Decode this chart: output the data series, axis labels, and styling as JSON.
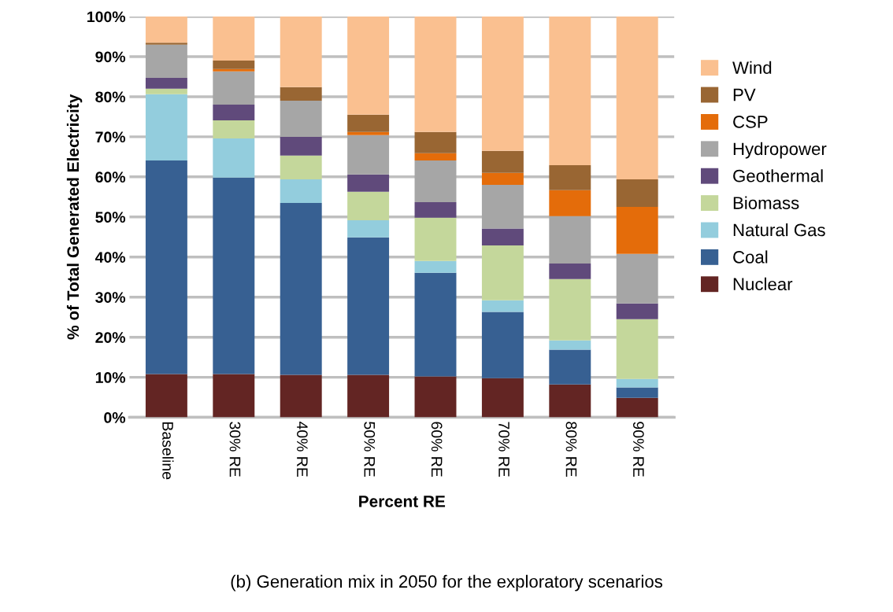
{
  "chart_data": {
    "type": "bar",
    "stacked": true,
    "xlabel": "Percent RE",
    "ylabel": "% of Total Generated Electricity",
    "categories": [
      "Baseline",
      "30% RE",
      "40% RE",
      "50% RE",
      "60% RE",
      "70% RE",
      "80% RE",
      "90% RE"
    ],
    "series": [
      {
        "name": "Nuclear",
        "color": "#632523",
        "values": [
          10.8,
          10.8,
          10.6,
          10.6,
          10.2,
          9.8,
          8.2,
          4.9
        ]
      },
      {
        "name": "Coal",
        "color": "#376092",
        "values": [
          53.3,
          49.0,
          42.9,
          34.3,
          25.9,
          16.5,
          8.7,
          2.6
        ]
      },
      {
        "name": "Natural Gas",
        "color": "#93cddd",
        "values": [
          16.5,
          9.8,
          5.9,
          4.3,
          2.9,
          2.9,
          2.3,
          2.1
        ]
      },
      {
        "name": "Biomass",
        "color": "#c4d79b",
        "values": [
          1.4,
          4.5,
          5.9,
          7.1,
          10.8,
          13.7,
          15.3,
          14.9
        ]
      },
      {
        "name": "Geothermal",
        "color": "#604a7b",
        "values": [
          2.7,
          3.9,
          4.7,
          4.3,
          3.9,
          4.2,
          3.9,
          3.9
        ]
      },
      {
        "name": "Hydropower",
        "color": "#a6a6a6",
        "values": [
          8.3,
          8.3,
          9.0,
          9.8,
          10.4,
          10.9,
          11.8,
          12.4
        ]
      },
      {
        "name": "CSP",
        "color": "#e46c0a",
        "values": [
          0,
          0.6,
          0,
          0.8,
          1.8,
          3.0,
          6.5,
          11.7
        ]
      },
      {
        "name": "PV",
        "color": "#996633",
        "values": [
          0.5,
          2.1,
          3.4,
          4.3,
          5.3,
          5.5,
          6.2,
          6.9
        ]
      },
      {
        "name": "Wind",
        "color": "#fac090",
        "values": [
          6.5,
          11.0,
          17.6,
          24.5,
          28.8,
          33.5,
          37.1,
          40.6
        ]
      }
    ],
    "ylim": [
      0,
      100
    ],
    "yticks": [
      {
        "value": 0,
        "label": "0%"
      },
      {
        "value": 10,
        "label": "10%"
      },
      {
        "value": 20,
        "label": "20%"
      },
      {
        "value": 30,
        "label": "30%"
      },
      {
        "value": 40,
        "label": "40%"
      },
      {
        "value": 50,
        "label": "50%"
      },
      {
        "value": 60,
        "label": "60%"
      },
      {
        "value": 70,
        "label": "70%"
      },
      {
        "value": 80,
        "label": "80%"
      },
      {
        "value": 90,
        "label": "90%"
      },
      {
        "value": 100,
        "label": "100%"
      }
    ],
    "grid": "y",
    "legend": "right",
    "annotations": [
      "(b) Generation mix in 2050 for the exploratory scenarios"
    ]
  }
}
